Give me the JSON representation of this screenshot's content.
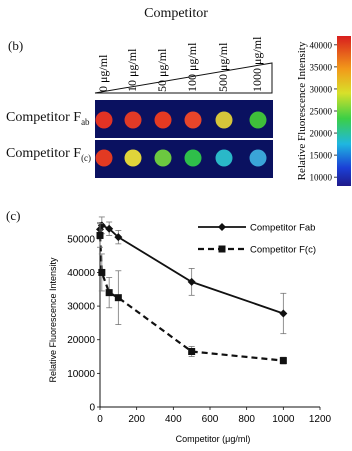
{
  "panel_b": {
    "title": "Competitor",
    "label": "(b)",
    "concentrations": [
      "0 μg/ml",
      "10 μg/ml",
      "50 μg/ml",
      "100 μg/ml",
      "500 μg/ml",
      "1000 μg/ml"
    ],
    "rows": [
      {
        "label_main": "Competitor F",
        "label_sub": "ab",
        "spot_colors": [
          "#e23324",
          "#e03a26",
          "#e53a22",
          "#e8452a",
          "#d6c53a",
          "#3fbf3a"
        ]
      },
      {
        "label_main": "Competitor F",
        "label_sub": "(c)",
        "spot_colors": [
          "#e23a22",
          "#e0d43a",
          "#6cc840",
          "#2fbf4a",
          "#2ab8c8",
          "#3aa4d8"
        ]
      }
    ],
    "colorbar": {
      "label": "Relative Fluorescence Intensity",
      "ticks": [
        "40000",
        "35000",
        "30000",
        "25000",
        "20000",
        "15000",
        "10000"
      ],
      "min": 8000,
      "max": 42000
    }
  },
  "chart_data": {
    "type": "line",
    "label": "(c)",
    "xlabel": "Competitor (μg/ml)",
    "ylabel": "Relative Fluorescence Intensity",
    "xlim": [
      0,
      1200
    ],
    "ylim": [
      0,
      55000
    ],
    "x_ticks": [
      "0",
      "200",
      "400",
      "600",
      "800",
      "1000",
      "1200"
    ],
    "y_ticks": [
      "0",
      "10000",
      "20000",
      "30000",
      "40000",
      "50000"
    ],
    "legend_position": "top-right",
    "series": [
      {
        "name": "Competitor Fab",
        "style": "solid",
        "marker": "diamond",
        "x": [
          0,
          10,
          50,
          100,
          500,
          1000
        ],
        "y": [
          52800,
          54000,
          53000,
          50500,
          37200,
          27800
        ],
        "err": [
          2000,
          2500,
          2000,
          2000,
          4000,
          6000
        ]
      },
      {
        "name": "Competitor F(c)",
        "style": "dashed",
        "marker": "square",
        "x": [
          0,
          10,
          50,
          100,
          500,
          1000
        ],
        "y": [
          51000,
          40000,
          34000,
          32500,
          16500,
          13800
        ],
        "err": [
          3500,
          5500,
          4500,
          8000,
          1500,
          1000
        ]
      }
    ]
  }
}
